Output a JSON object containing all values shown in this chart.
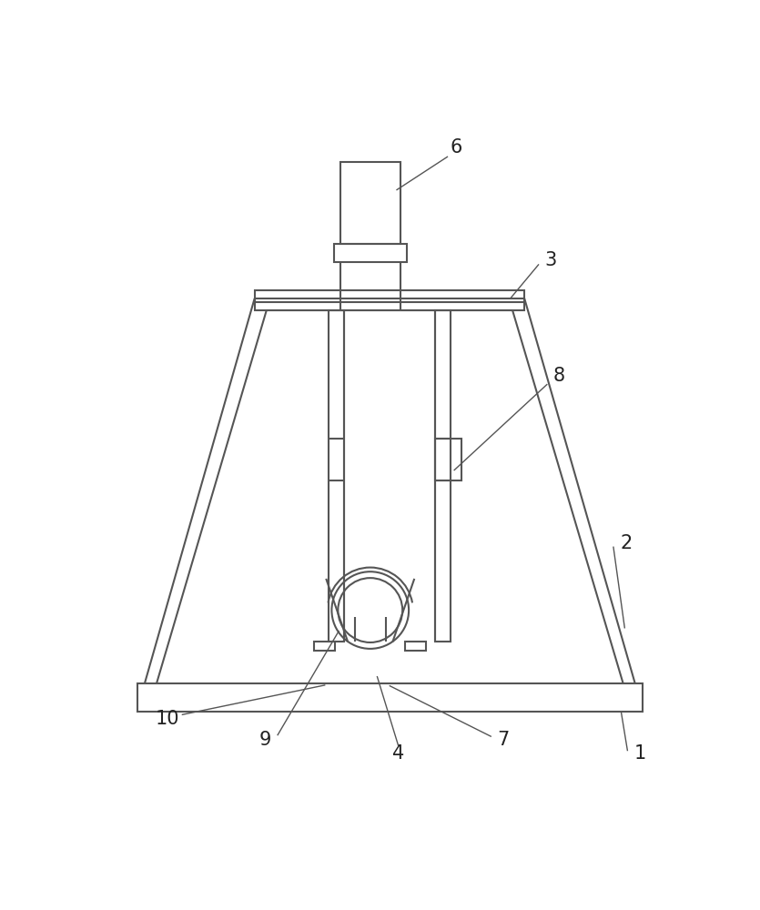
{
  "line_color": "#555555",
  "line_width": 1.5,
  "bg_color": "#ffffff",
  "fig_width": 8.35,
  "fig_height": 10.0,
  "label_fontsize": 15
}
